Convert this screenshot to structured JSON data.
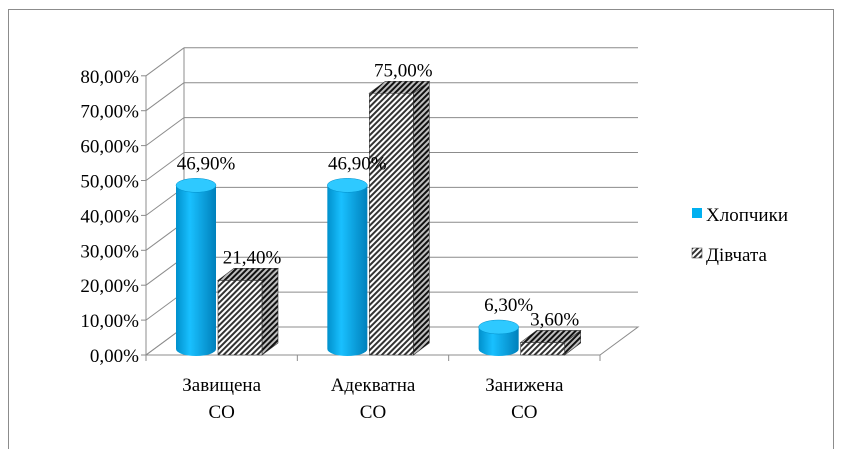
{
  "chart_data": {
    "type": "bar",
    "style": "3d-cylinder-and-box",
    "categories": [
      [
        "Завищена",
        "СО"
      ],
      [
        "Адекватна",
        "СО"
      ],
      [
        "Занижена",
        "СО"
      ]
    ],
    "series": [
      {
        "name": "Хлопчики",
        "values": [
          46.9,
          46.9,
          6.3
        ],
        "labels": [
          "46,90%",
          "46,90%",
          "6,30%"
        ],
        "color": "#00b0f0",
        "fill": "cylinder"
      },
      {
        "name": "Дівчата",
        "values": [
          21.4,
          75.0,
          3.6
        ],
        "labels": [
          "21,40%",
          "75,00%",
          "3,60%"
        ],
        "color": "#404040",
        "fill": "hatched-box"
      }
    ],
    "ylim": [
      0,
      80
    ],
    "ytick_labels": [
      "0,00%",
      "10,00%",
      "20,00%",
      "30,00%",
      "40,00%",
      "50,00%",
      "60,00%",
      "70,00%",
      "80,00%"
    ],
    "grid": true,
    "legend_position": "right"
  }
}
